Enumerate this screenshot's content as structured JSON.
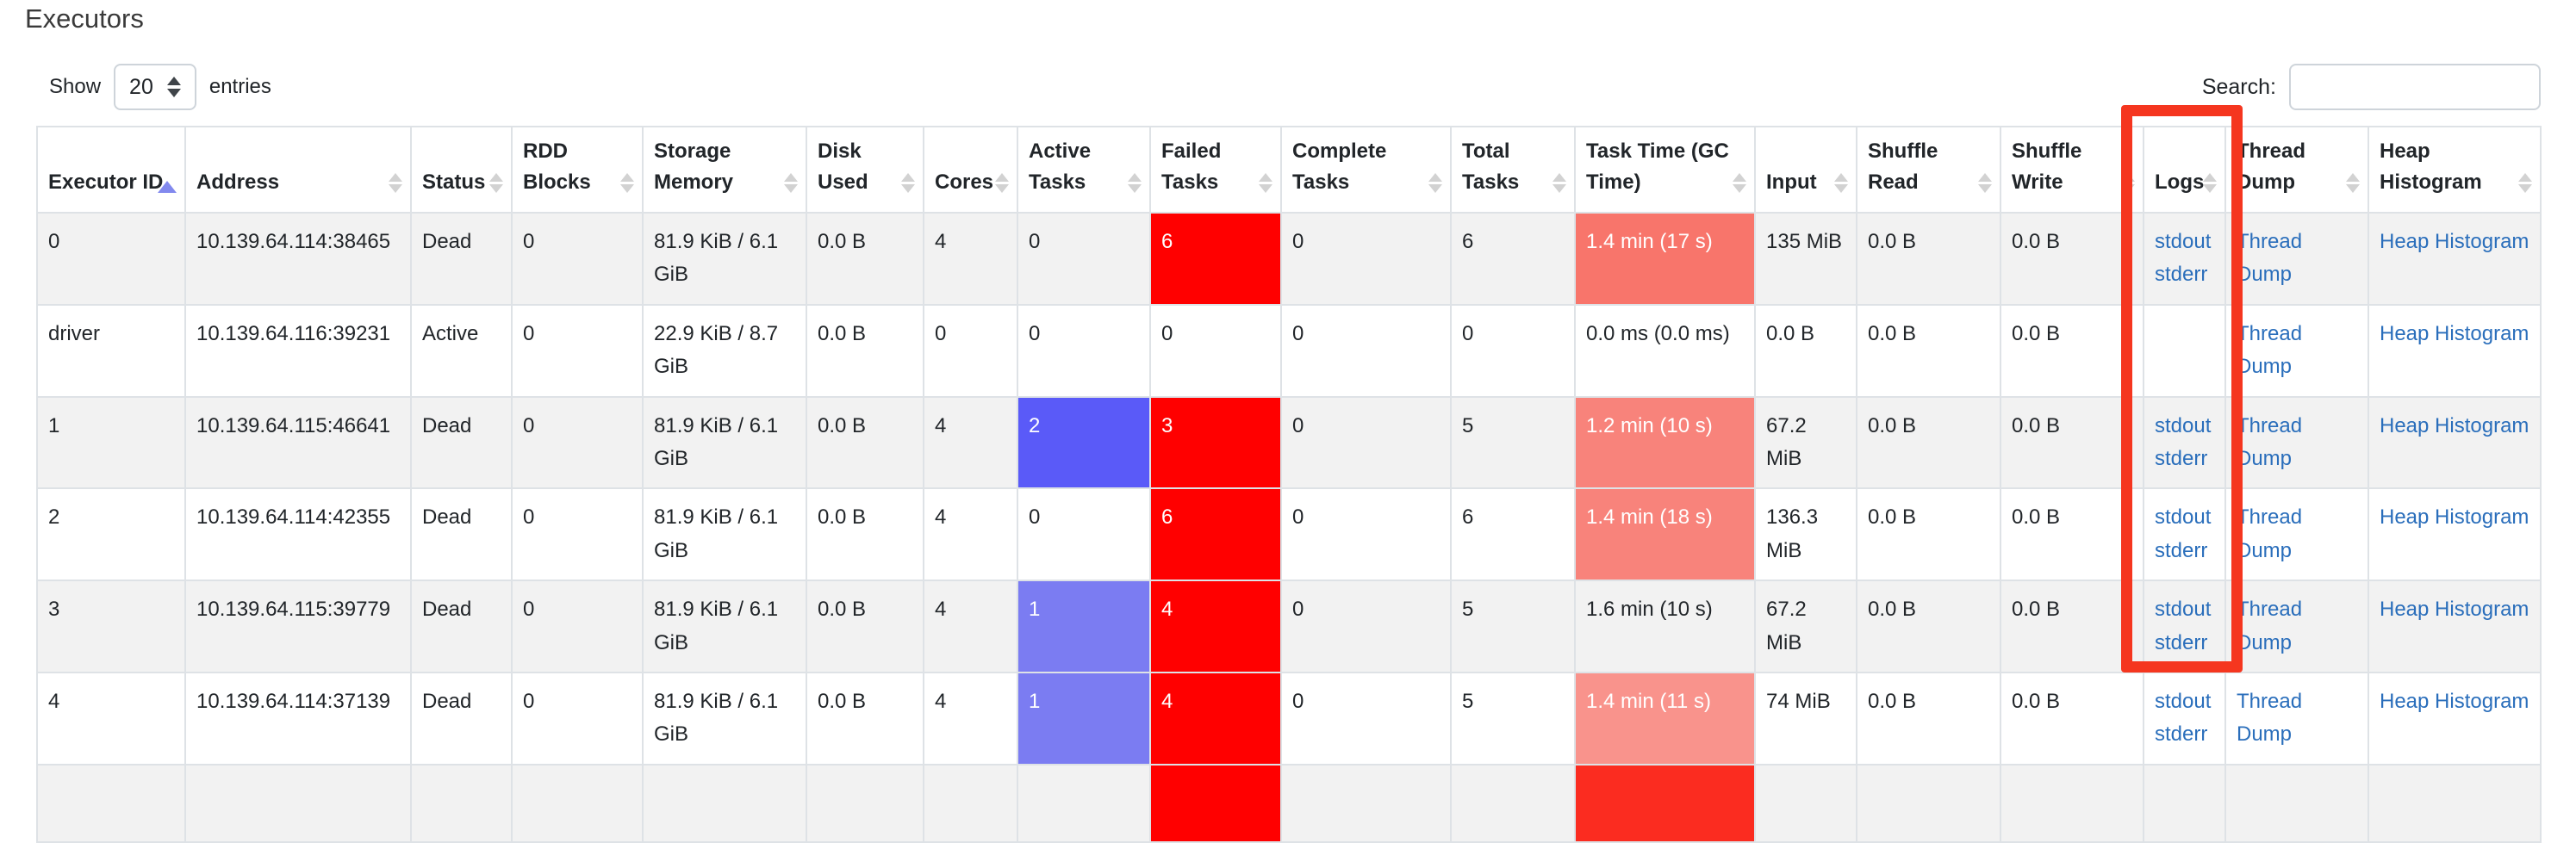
{
  "page": {
    "title": "Executors"
  },
  "controls": {
    "show_label": "Show",
    "page_size": "20",
    "entries_label": "entries",
    "search_label": "Search:",
    "search_value": ""
  },
  "colors": {
    "link": "#2a6ebb",
    "stripe": "#f2f2f2",
    "failed_red": "#ff0000",
    "active_blue_high": "#5a5af8",
    "active_blue_low": "#7b7cf2",
    "task_time_salmon": "#f8837b",
    "annotation_red": "#f5361f",
    "sort_active_arrow": "#8289ee",
    "sort_idle_arrow": "#d2d2d2"
  },
  "table": {
    "columns": [
      {
        "id": "executor-id",
        "label": "Executor ID",
        "sort": "asc"
      },
      {
        "id": "address",
        "label": "Address",
        "sort": "both"
      },
      {
        "id": "status",
        "label": "Status",
        "sort": "both"
      },
      {
        "id": "rdd-blocks",
        "label": "RDD Blocks",
        "sort": "both"
      },
      {
        "id": "storage-memory",
        "label": "Storage Memory",
        "sort": "both"
      },
      {
        "id": "disk-used",
        "label": "Disk Used",
        "sort": "both"
      },
      {
        "id": "cores",
        "label": "Cores",
        "sort": "both"
      },
      {
        "id": "active-tasks",
        "label": "Active Tasks",
        "sort": "both"
      },
      {
        "id": "failed-tasks",
        "label": "Failed Tasks",
        "sort": "both"
      },
      {
        "id": "complete-tasks",
        "label": "Complete Tasks",
        "sort": "both"
      },
      {
        "id": "total-tasks",
        "label": "Total Tasks",
        "sort": "both"
      },
      {
        "id": "task-time",
        "label": "Task Time (GC Time)",
        "sort": "both"
      },
      {
        "id": "input",
        "label": "Input",
        "sort": "both"
      },
      {
        "id": "shuffle-read",
        "label": "Shuffle Read",
        "sort": "both"
      },
      {
        "id": "shuffle-write",
        "label": "Shuffle Write",
        "sort": "both"
      },
      {
        "id": "logs",
        "label": "Logs",
        "sort": "both"
      },
      {
        "id": "thread-dump",
        "label": "Thread Dump",
        "sort": "both"
      },
      {
        "id": "heap-histogram",
        "label": "Heap Histogram",
        "sort": "both"
      }
    ],
    "rows": [
      {
        "stripe": true,
        "cells": [
          "0",
          "10.139.64.114:38465",
          "Dead",
          "0",
          "81.9 KiB / 6.1 GiB",
          "0.0 B",
          "4",
          "0",
          {
            "t": "6",
            "bg": "#ff0000",
            "fg": "#ffffff"
          },
          "0",
          "6",
          {
            "t": "1.4 min (17 s)",
            "bg": "#f8756b",
            "fg": "#ffffff"
          },
          "135 MiB",
          "0.0 B",
          "0.0 B",
          {
            "links": [
              "stdout",
              "stderr"
            ]
          },
          {
            "links": [
              "Thread Dump"
            ]
          },
          {
            "links": [
              "Heap Histogram"
            ]
          }
        ]
      },
      {
        "stripe": false,
        "cells": [
          "driver",
          "10.139.64.116:39231",
          "Active",
          "0",
          "22.9 KiB / 8.7 GiB",
          "0.0 B",
          "0",
          "0",
          "0",
          "0",
          "0",
          "0.0 ms (0.0 ms)",
          "0.0 B",
          "0.0 B",
          "0.0 B",
          {
            "links": []
          },
          {
            "links": [
              "Thread Dump"
            ]
          },
          {
            "links": [
              "Heap Histogram"
            ]
          }
        ]
      },
      {
        "stripe": true,
        "cells": [
          "1",
          "10.139.64.115:46641",
          "Dead",
          "0",
          "81.9 KiB / 6.1 GiB",
          "0.0 B",
          "4",
          {
            "t": "2",
            "bg": "#5a5af8",
            "fg": "#ffffff"
          },
          {
            "t": "3",
            "bg": "#ff0000",
            "fg": "#ffffff"
          },
          "0",
          "5",
          {
            "t": "1.2 min (10 s)",
            "bg": "#f8837b",
            "fg": "#ffffff"
          },
          "67.2 MiB",
          "0.0 B",
          "0.0 B",
          {
            "links": [
              "stdout",
              "stderr"
            ]
          },
          {
            "links": [
              "Thread Dump"
            ]
          },
          {
            "links": [
              "Heap Histogram"
            ]
          }
        ]
      },
      {
        "stripe": false,
        "cells": [
          "2",
          "10.139.64.114:42355",
          "Dead",
          "0",
          "81.9 KiB / 6.1 GiB",
          "0.0 B",
          "4",
          "0",
          {
            "t": "6",
            "bg": "#ff0000",
            "fg": "#ffffff"
          },
          "0",
          "6",
          {
            "t": "1.4 min (18 s)",
            "bg": "#f8837b",
            "fg": "#ffffff"
          },
          "136.3 MiB",
          "0.0 B",
          "0.0 B",
          {
            "links": [
              "stdout",
              "stderr"
            ]
          },
          {
            "links": [
              "Thread Dump"
            ]
          },
          {
            "links": [
              "Heap Histogram"
            ]
          }
        ]
      },
      {
        "stripe": true,
        "cells": [
          "3",
          "10.139.64.115:39779",
          "Dead",
          "0",
          "81.9 KiB / 6.1 GiB",
          "0.0 B",
          "4",
          {
            "t": "1",
            "bg": "#7b7cf2",
            "fg": "#ffffff"
          },
          {
            "t": "4",
            "bg": "#ff0000",
            "fg": "#ffffff"
          },
          "0",
          "5",
          "1.6 min (10 s)",
          "67.2 MiB",
          "0.0 B",
          "0.0 B",
          {
            "links": [
              "stdout",
              "stderr"
            ]
          },
          {
            "links": [
              "Thread Dump"
            ]
          },
          {
            "links": [
              "Heap Histogram"
            ]
          }
        ]
      },
      {
        "stripe": false,
        "cells": [
          "4",
          "10.139.64.114:37139",
          "Dead",
          "0",
          "81.9 KiB / 6.1 GiB",
          "0.0 B",
          "4",
          {
            "t": "1",
            "bg": "#7b7cf2",
            "fg": "#ffffff"
          },
          {
            "t": "4",
            "bg": "#ff0000",
            "fg": "#ffffff"
          },
          "0",
          "5",
          {
            "t": "1.4 min (11 s)",
            "bg": "#f9938c",
            "fg": "#ffffff"
          },
          "74 MiB",
          "0.0 B",
          "0.0 B",
          {
            "links": [
              "stdout",
              "stderr"
            ]
          },
          {
            "links": [
              "Thread Dump"
            ]
          },
          {
            "links": [
              "Heap Histogram"
            ]
          }
        ]
      },
      {
        "stripe": true,
        "partial": true,
        "cells": [
          "",
          "",
          "",
          "",
          "",
          "",
          "",
          "",
          {
            "t": "",
            "bg": "#ff0000"
          },
          "",
          "",
          {
            "t": "",
            "bg": "#fb2c20"
          },
          "",
          "",
          "",
          {
            "t": ""
          },
          {
            "t": ""
          },
          {
            "t": ""
          }
        ]
      }
    ]
  },
  "annotation": {
    "label": "logs-column-highlight"
  }
}
